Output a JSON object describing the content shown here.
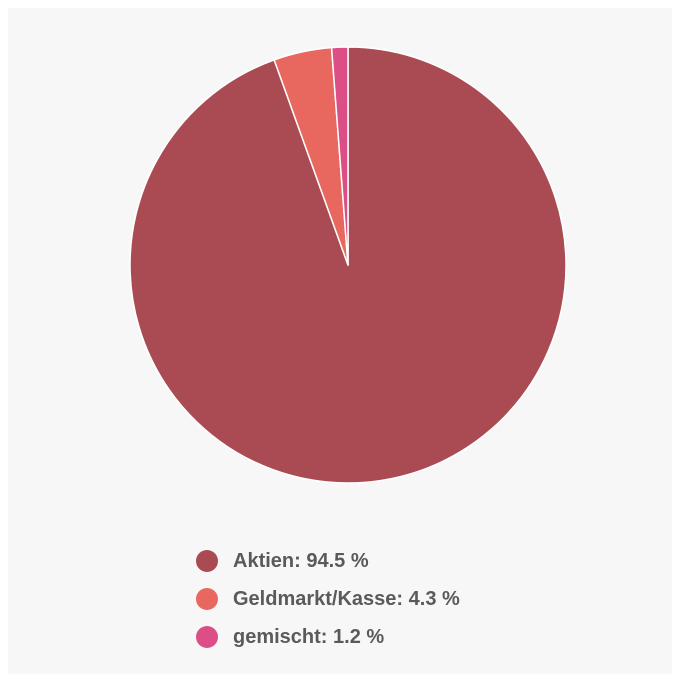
{
  "chart_data": {
    "type": "pie",
    "slices": [
      {
        "name": "Aktien",
        "value": 94.5,
        "label": "Aktien: 94.5 %",
        "color": "#aa4a53"
      },
      {
        "name": "Geldmarkt/Kasse",
        "value": 4.3,
        "label": "Geldmarkt/Kasse: 4.3 %",
        "color": "#e8685f"
      },
      {
        "name": "gemischt",
        "value": 1.2,
        "label": "gemischt: 1.2 %",
        "color": "#dc4f86"
      }
    ],
    "start_angle": "12 o'clock",
    "direction": "clockwise",
    "legend_position": "bottom"
  }
}
